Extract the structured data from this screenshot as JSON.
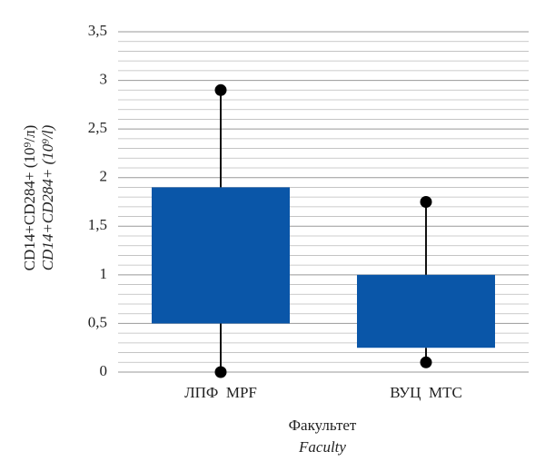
{
  "chart_data": {
    "type": "box",
    "y_label": [
      "CD14+CD284+ (10⁹/л)",
      "CD14+CD284+ (10⁹/l)"
    ],
    "x_label": [
      "Факультет",
      "Faculty"
    ],
    "categories": [
      "ЛПФ  MPF",
      "ВУЦ  MTC"
    ],
    "min": [
      0,
      0.1
    ],
    "q1": [
      0.5,
      0.25
    ],
    "q3": [
      1.9,
      1.0
    ],
    "max": [
      2.9,
      1.75
    ],
    "color": "#0a56a8",
    "ylim": [
      0,
      3.5
    ],
    "yticks": [
      0,
      {
        "value": 0.5,
        "label": "0,5"
      },
      1,
      {
        "value": 1.5,
        "label": "1,5"
      },
      2,
      {
        "value": 2.5,
        "label": "2,5"
      },
      3,
      {
        "value": 3.5,
        "label": "3,5"
      }
    ],
    "grid": true
  }
}
